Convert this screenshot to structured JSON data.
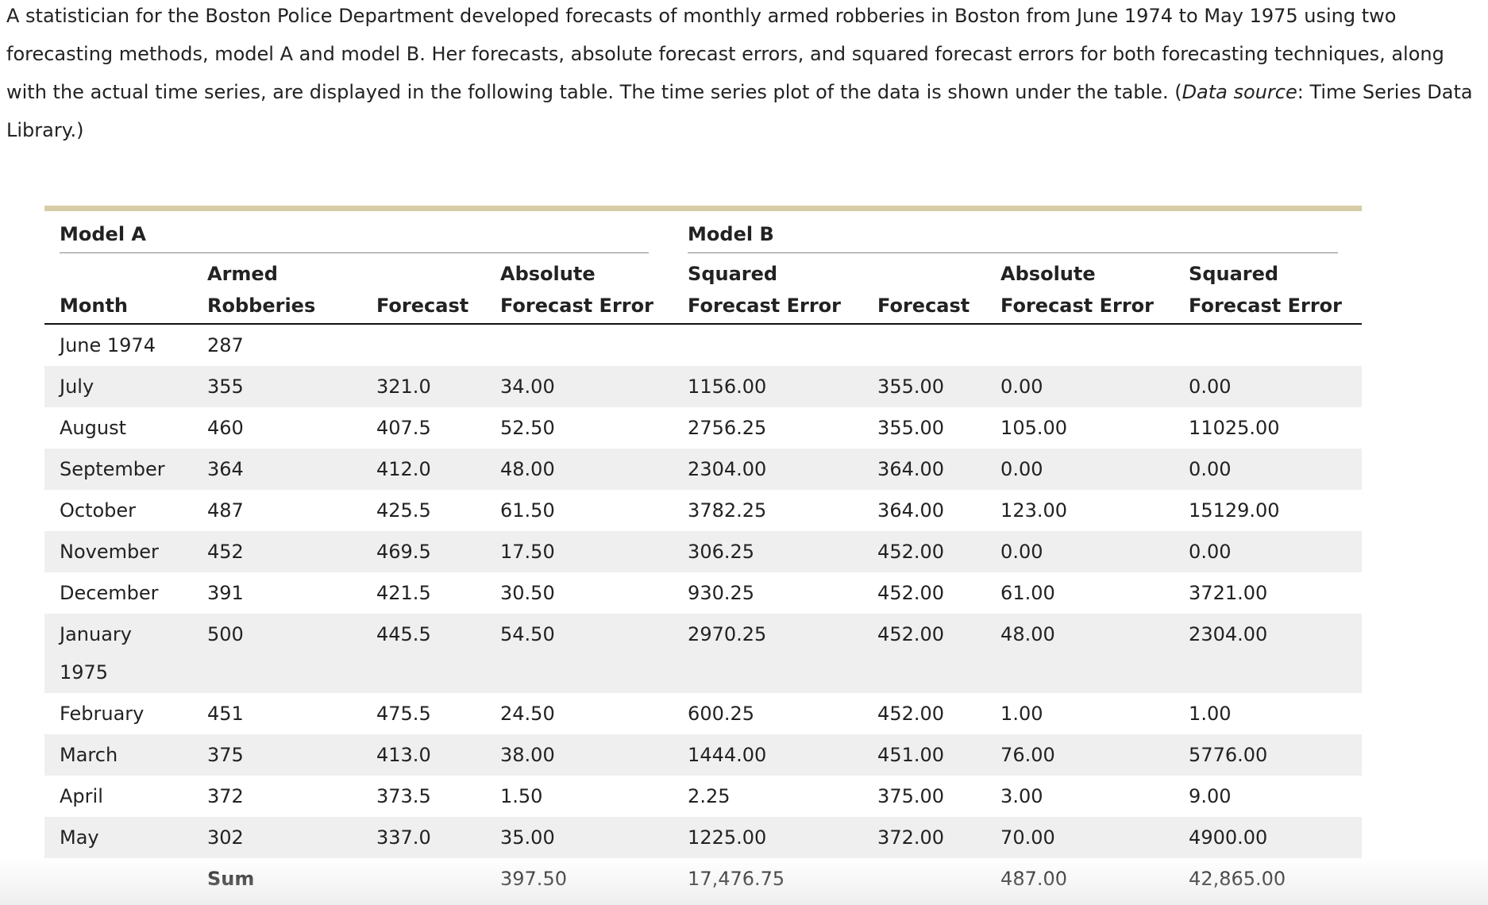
{
  "intro": {
    "before": "A statistician for the Boston Police Department developed forecasts of monthly armed robberies in Boston from June 1974 to May 1975 using two forecasting methods, model A and model B. Her forecasts, absolute forecast errors, and squared forecast errors for both forecasting techniques, along with the actual time series, are displayed in the following table. The time series plot of the data is shown under the table. (",
    "italic": "Data source",
    "after": ": Time Series Data Library.)"
  },
  "table": {
    "groups": [
      "Model A",
      "Model B"
    ],
    "columns": [
      [
        "Month"
      ],
      [
        "Armed",
        "Robberies"
      ],
      [
        "Forecast"
      ],
      [
        "Absolute",
        "Forecast Error"
      ],
      [
        "Squared",
        "Forecast Error"
      ],
      [
        "Forecast"
      ],
      [
        "Absolute",
        "Forecast Error"
      ],
      [
        "Squared",
        "Forecast Error"
      ]
    ],
    "rows": [
      [
        "June 1974",
        "287",
        null,
        null,
        null,
        null,
        null,
        null
      ],
      [
        "July",
        "355",
        "321.0",
        "34.00",
        "1156.00",
        "355.00",
        "0.00",
        "0.00"
      ],
      [
        "August",
        "460",
        "407.5",
        "52.50",
        "2756.25",
        "355.00",
        "105.00",
        "11025.00"
      ],
      [
        "September",
        "364",
        "412.0",
        "48.00",
        "2304.00",
        "364.00",
        "0.00",
        "0.00"
      ],
      [
        "October",
        "487",
        "425.5",
        "61.50",
        "3782.25",
        "364.00",
        "123.00",
        "15129.00"
      ],
      [
        "November",
        "452",
        "469.5",
        "17.50",
        "306.25",
        "452.00",
        "0.00",
        "0.00"
      ],
      [
        "December",
        "391",
        "421.5",
        "30.50",
        "930.25",
        "452.00",
        "61.00",
        "3721.00"
      ],
      [
        "January 1975",
        "500",
        "445.5",
        "54.50",
        "2970.25",
        "452.00",
        "48.00",
        "2304.00"
      ],
      [
        "February",
        "451",
        "475.5",
        "24.50",
        "600.25",
        "452.00",
        "1.00",
        "1.00"
      ],
      [
        "March",
        "375",
        "413.0",
        "38.00",
        "1444.00",
        "451.00",
        "76.00",
        "5776.00"
      ],
      [
        "April",
        "372",
        "373.5",
        "1.50",
        "2.25",
        "375.00",
        "3.00",
        "9.00"
      ],
      [
        "May",
        "302",
        "337.0",
        "35.00",
        "1225.00",
        "372.00",
        "70.00",
        "4900.00"
      ]
    ],
    "sum": [
      null,
      "Sum",
      null,
      "397.50",
      "17,476.75",
      null,
      "487.00",
      "42,865.00"
    ]
  }
}
